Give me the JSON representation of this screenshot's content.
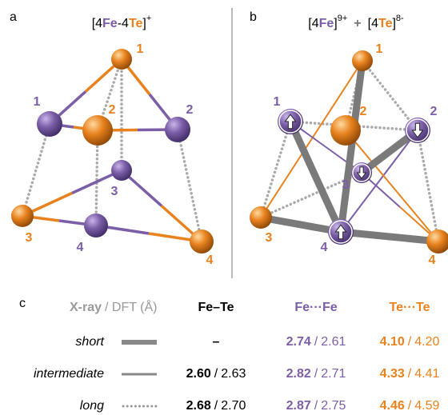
{
  "panel_a": {
    "label": "a",
    "title": [
      "[4",
      "Fe",
      "-4",
      "Te",
      "]",
      "+"
    ],
    "te_labels": [
      "1",
      "2",
      "3",
      "4"
    ],
    "fe_labels": [
      "1",
      "2",
      "3",
      "4"
    ]
  },
  "panel_b": {
    "label": "b",
    "title": [
      "[4",
      "Fe",
      "]",
      "9+",
      "+",
      "[4",
      "Te",
      "]",
      "8-"
    ],
    "te_labels": [
      "1",
      "2",
      "3",
      "4"
    ],
    "fe_labels": [
      "1",
      "2",
      "3",
      "4"
    ]
  },
  "table": {
    "label": "c",
    "header": [
      "X-ray",
      "/ DFT (Å)"
    ],
    "columns": [
      "Fe–Te",
      "Fe···Fe",
      "Te···Te"
    ],
    "separator": "/",
    "rows": [
      {
        "name": "short",
        "cells": [
          {
            "xray": "–"
          },
          {
            "xray": "2.74",
            "dft": "2.61"
          },
          {
            "xray": "4.10",
            "dft": "4.20"
          }
        ]
      },
      {
        "name": "intermediate",
        "cells": [
          {
            "xray": "2.60",
            "dft": "2.63"
          },
          {
            "xray": "2.82",
            "dft": "2.71"
          },
          {
            "xray": "4.33",
            "dft": "4.41"
          }
        ]
      },
      {
        "name": "long",
        "cells": [
          {
            "xray": "2.68",
            "dft": "2.70"
          },
          {
            "xray": "2.87",
            "dft": "2.75"
          },
          {
            "xray": "4.46",
            "dft": "4.59"
          }
        ]
      }
    ]
  }
}
